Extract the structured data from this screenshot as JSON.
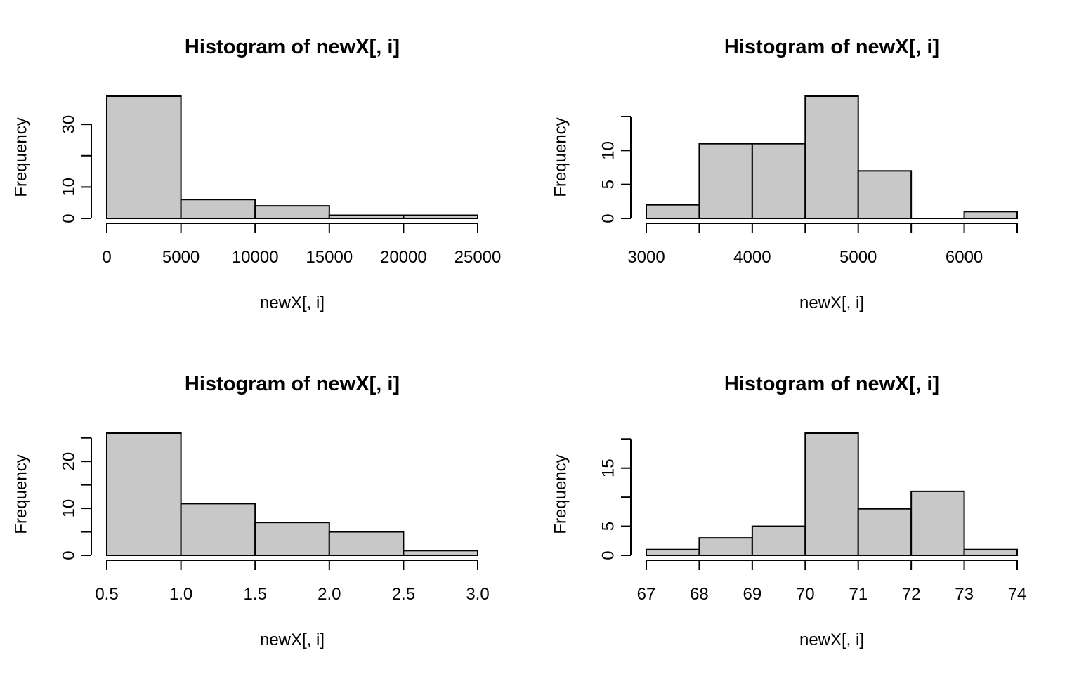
{
  "style": {
    "bar_fill": "#c8c8c8",
    "bar_stroke": "#000000",
    "background": "#ffffff"
  },
  "chart_data": [
    {
      "type": "bar",
      "title": "Histogram of newX[, i]",
      "xlabel": "newX[, i]",
      "ylabel": "Frequency",
      "breaks": [
        0,
        5000,
        10000,
        15000,
        20000,
        25000
      ],
      "counts": [
        39,
        6,
        4,
        1,
        1
      ],
      "xticks": [
        0,
        5000,
        10000,
        15000,
        20000,
        25000
      ],
      "xtick_labels": [
        "0",
        "5000",
        "10000",
        "15000",
        "20000",
        "25000"
      ],
      "yticks": [
        0,
        10,
        20,
        30
      ],
      "ytick_labels": [
        "0",
        "10",
        "",
        "30"
      ],
      "ylim": [
        0,
        39
      ]
    },
    {
      "type": "bar",
      "title": "Histogram of newX[, i]",
      "xlabel": "newX[, i]",
      "ylabel": "Frequency",
      "breaks": [
        3000,
        3500,
        4000,
        4500,
        5000,
        5500,
        6000,
        6500
      ],
      "counts": [
        2,
        11,
        11,
        18,
        7,
        0,
        1
      ],
      "xticks": [
        3000,
        3500,
        4000,
        4500,
        5000,
        5500,
        6000,
        6500
      ],
      "xtick_labels": [
        "3000",
        "",
        "4000",
        "",
        "5000",
        "",
        "6000",
        ""
      ],
      "yticks": [
        0,
        5,
        10,
        15
      ],
      "ytick_labels": [
        "0",
        "5",
        "10",
        ""
      ],
      "ylim": [
        0,
        18
      ]
    },
    {
      "type": "bar",
      "title": "Histogram of newX[, i]",
      "xlabel": "newX[, i]",
      "ylabel": "Frequency",
      "breaks": [
        0.5,
        1.0,
        1.5,
        2.0,
        2.5,
        3.0
      ],
      "counts": [
        26,
        11,
        7,
        5,
        1
      ],
      "xticks": [
        0.5,
        1.0,
        1.5,
        2.0,
        2.5,
        3.0
      ],
      "xtick_labels": [
        "0.5",
        "1.0",
        "1.5",
        "2.0",
        "2.5",
        "3.0"
      ],
      "yticks": [
        0,
        5,
        10,
        15,
        20,
        25
      ],
      "ytick_labels": [
        "0",
        "",
        "10",
        "",
        "20",
        ""
      ],
      "ylim": [
        0,
        26
      ]
    },
    {
      "type": "bar",
      "title": "Histogram of newX[, i]",
      "xlabel": "newX[, i]",
      "ylabel": "Frequency",
      "breaks": [
        67,
        68,
        69,
        70,
        71,
        72,
        73,
        74
      ],
      "counts": [
        1,
        3,
        5,
        21,
        8,
        11,
        1
      ],
      "xticks": [
        67,
        68,
        69,
        70,
        71,
        72,
        73,
        74
      ],
      "xtick_labels": [
        "67",
        "68",
        "69",
        "70",
        "71",
        "72",
        "73",
        "74"
      ],
      "yticks": [
        0,
        5,
        10,
        15,
        20
      ],
      "ytick_labels": [
        "0",
        "5",
        "",
        "15",
        ""
      ],
      "ylim": [
        0,
        21
      ]
    }
  ]
}
